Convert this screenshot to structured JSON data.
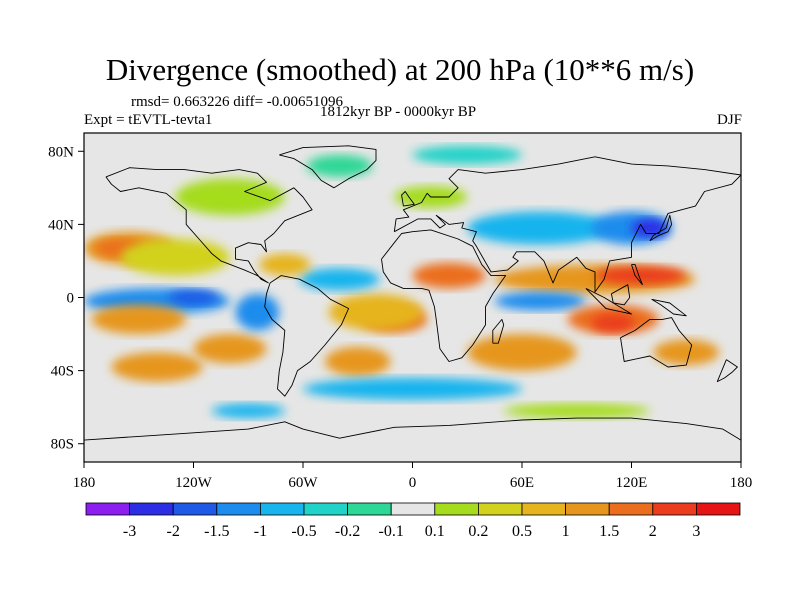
{
  "title": "Divergence (smoothed) at 200 hPa (10**6 m/s)",
  "stats": "rmsd= 0.663226 diff= -0.00651096",
  "experiment": "Expt = tEVTL-tevta1",
  "period": "1812kyr BP - 0000kyr BP",
  "season": "DJF",
  "map": {
    "projection": "cylindrical-equidistant",
    "lon_range": [
      -180,
      180
    ],
    "lat_range": [
      -90,
      90
    ],
    "lat_ticks": [
      {
        "value": 80,
        "label": "80N"
      },
      {
        "value": 40,
        "label": "40N"
      },
      {
        "value": 0,
        "label": "0"
      },
      {
        "value": -40,
        "label": "40S"
      },
      {
        "value": -80,
        "label": "80S"
      }
    ],
    "lon_ticks": [
      {
        "value": -180,
        "label": "180"
      },
      {
        "value": -120,
        "label": "120W"
      },
      {
        "value": -60,
        "label": "60W"
      },
      {
        "value": 0,
        "label": "0"
      },
      {
        "value": 60,
        "label": "60E"
      },
      {
        "value": 120,
        "label": "120E"
      },
      {
        "value": 180,
        "label": "180"
      }
    ]
  },
  "colorbar": {
    "colors": [
      "#8c1ef0",
      "#2d2de6",
      "#1f5ae6",
      "#1e8ced",
      "#17b4ee",
      "#20d2c8",
      "#2dd796",
      "#e6e6e6",
      "#a5dc1e",
      "#d2d21e",
      "#e6b41e",
      "#e6961e",
      "#eb6e1e",
      "#eb3c1e",
      "#e61414"
    ],
    "labels": [
      "-3",
      "-2",
      "-1.5",
      "-1",
      "-0.5",
      "-0.2",
      "-0.1",
      "0.1",
      "0.2",
      "0.5",
      "1",
      "1.5",
      "2",
      "3"
    ]
  },
  "regions": [
    {
      "name": "pacific-north-positive",
      "lon": -155,
      "lat": 27,
      "rlon": 25,
      "rlat": 9,
      "color": "#e6961e"
    },
    {
      "name": "pacific-north-core",
      "lon": -160,
      "lat": 27,
      "rlon": 14,
      "rlat": 5,
      "color": "#eb6e1e"
    },
    {
      "name": "pacific-north-yellow",
      "lon": -130,
      "lat": 22,
      "rlon": 30,
      "rlat": 10,
      "color": "#d2d21e"
    },
    {
      "name": "pacific-equator-negative",
      "lon": -140,
      "lat": -2,
      "rlon": 40,
      "rlat": 7,
      "color": "#1e8ced"
    },
    {
      "name": "pacific-equator-blue",
      "lon": -120,
      "lat": 0,
      "rlon": 14,
      "rlat": 4,
      "color": "#1f5ae6"
    },
    {
      "name": "pacific-south-band",
      "lon": -150,
      "lat": -12,
      "rlon": 26,
      "rlat": 8,
      "color": "#e6961e"
    },
    {
      "name": "pacific-south-orange",
      "lon": -100,
      "lat": -28,
      "rlon": 20,
      "rlat": 8,
      "color": "#e6961e"
    },
    {
      "name": "south-america-trough",
      "lon": -85,
      "lat": -8,
      "rlon": 12,
      "rlat": 10,
      "color": "#1e8ced"
    },
    {
      "name": "atlantic-equator-orange",
      "lon": -10,
      "lat": -12,
      "rlon": 18,
      "rlat": 7,
      "color": "#eb6e1e"
    },
    {
      "name": "atlantic-equator-yellow",
      "lon": -20,
      "lat": -8,
      "rlon": 26,
      "rlat": 10,
      "color": "#e6b41e"
    },
    {
      "name": "atlantic-north-blue",
      "lon": -40,
      "lat": 10,
      "rlon": 22,
      "rlat": 6,
      "color": "#17b4ee"
    },
    {
      "name": "caribbean-yellow",
      "lon": -70,
      "lat": 18,
      "rlon": 14,
      "rlat": 6,
      "color": "#e6b41e"
    },
    {
      "name": "north-america-green",
      "lon": -100,
      "lat": 55,
      "rlon": 30,
      "rlat": 10,
      "color": "#a5dc1e"
    },
    {
      "name": "greenland-green",
      "lon": -40,
      "lat": 72,
      "rlon": 18,
      "rlat": 6,
      "color": "#2dd796"
    },
    {
      "name": "arctic-cyan",
      "lon": 30,
      "lat": 78,
      "rlon": 30,
      "rlat": 5,
      "color": "#20d2c8"
    },
    {
      "name": "europe-green",
      "lon": 10,
      "lat": 55,
      "rlon": 20,
      "rlat": 6,
      "color": "#a5dc1e"
    },
    {
      "name": "asia-north-blue",
      "lon": 70,
      "lat": 38,
      "rlon": 40,
      "rlat": 9,
      "color": "#17b4ee"
    },
    {
      "name": "asia-north-deep",
      "lon": 120,
      "lat": 38,
      "rlon": 22,
      "rlat": 9,
      "color": "#1e8ced"
    },
    {
      "name": "japan-core",
      "lon": 130,
      "lat": 38,
      "rlon": 10,
      "rlat": 5,
      "color": "#2d2de6"
    },
    {
      "name": "africa-orange",
      "lon": 20,
      "lat": 12,
      "rlon": 20,
      "rlat": 7,
      "color": "#eb6e1e"
    },
    {
      "name": "asia-equator-band",
      "lon": 100,
      "lat": 10,
      "rlon": 55,
      "rlat": 8,
      "color": "#e6961e"
    },
    {
      "name": "asia-equator-core",
      "lon": 125,
      "lat": 12,
      "rlon": 25,
      "rlat": 5,
      "color": "#eb3c1e"
    },
    {
      "name": "indian-ocean-blue",
      "lon": 70,
      "lat": -2,
      "rlon": 25,
      "rlat": 5,
      "color": "#1e8ced"
    },
    {
      "name": "maritime-positive",
      "lon": 110,
      "lat": -12,
      "rlon": 25,
      "rlat": 8,
      "color": "#eb6e1e"
    },
    {
      "name": "maritime-core",
      "lon": 110,
      "lat": -14,
      "rlon": 12,
      "rlat": 5,
      "color": "#eb3c1e"
    },
    {
      "name": "indian-south-orange",
      "lon": 60,
      "lat": -30,
      "rlon": 30,
      "rlat": 10,
      "color": "#e6961e"
    },
    {
      "name": "south-atlantic-orange",
      "lon": -30,
      "lat": -35,
      "rlon": 18,
      "rlat": 8,
      "color": "#e6961e"
    },
    {
      "name": "south-pacific-orange",
      "lon": -140,
      "lat": -38,
      "rlon": 25,
      "rlat": 8,
      "color": "#e6961e"
    },
    {
      "name": "southern-ocean-cyan",
      "lon": 0,
      "lat": -50,
      "rlon": 60,
      "rlat": 6,
      "color": "#17b4ee"
    },
    {
      "name": "australia-orange",
      "lon": 150,
      "lat": -30,
      "rlon": 18,
      "rlat": 7,
      "color": "#e6961e"
    },
    {
      "name": "antarctic-green",
      "lon": 90,
      "lat": -62,
      "rlon": 40,
      "rlat": 4,
      "color": "#a5dc1e"
    },
    {
      "name": "antarctic-blue",
      "lon": -90,
      "lat": -62,
      "rlon": 20,
      "rlat": 4,
      "color": "#17b4ee"
    }
  ],
  "coastlines": [
    {
      "name": "north-america",
      "points": [
        [
          -168,
          66
        ],
        [
          -155,
          71
        ],
        [
          -140,
          70
        ],
        [
          -125,
          70
        ],
        [
          -110,
          68
        ],
        [
          -95,
          70
        ],
        [
          -85,
          68
        ],
        [
          -80,
          63
        ],
        [
          -92,
          58
        ],
        [
          -78,
          53
        ],
        [
          -65,
          60
        ],
        [
          -60,
          55
        ],
        [
          -55,
          48
        ],
        [
          -65,
          44
        ],
        [
          -70,
          42
        ],
        [
          -76,
          35
        ],
        [
          -81,
          31
        ],
        [
          -80,
          25
        ],
        [
          -83,
          29
        ],
        [
          -90,
          30
        ],
        [
          -97,
          27
        ],
        [
          -97,
          21
        ],
        [
          -90,
          20
        ],
        [
          -87,
          15
        ],
        [
          -83,
          10
        ],
        [
          -79,
          8
        ],
        [
          -85,
          12
        ],
        [
          -92,
          15
        ],
        [
          -105,
          20
        ],
        [
          -110,
          24
        ],
        [
          -117,
          32
        ],
        [
          -124,
          40
        ],
        [
          -124,
          48
        ],
        [
          -135,
          57
        ],
        [
          -150,
          60
        ],
        [
          -160,
          58
        ],
        [
          -165,
          62
        ],
        [
          -168,
          66
        ]
      ]
    },
    {
      "name": "greenland",
      "points": [
        [
          -73,
          78
        ],
        [
          -60,
          82
        ],
        [
          -35,
          83
        ],
        [
          -20,
          81
        ],
        [
          -20,
          75
        ],
        [
          -25,
          70
        ],
        [
          -35,
          65
        ],
        [
          -43,
          60
        ],
        [
          -50,
          64
        ],
        [
          -55,
          70
        ],
        [
          -65,
          76
        ],
        [
          -73,
          78
        ]
      ]
    },
    {
      "name": "south-america",
      "points": [
        [
          -78,
          8
        ],
        [
          -72,
          12
        ],
        [
          -62,
          10
        ],
        [
          -52,
          5
        ],
        [
          -45,
          -1
        ],
        [
          -35,
          -6
        ],
        [
          -39,
          -15
        ],
        [
          -48,
          -26
        ],
        [
          -56,
          -35
        ],
        [
          -63,
          -40
        ],
        [
          -66,
          -48
        ],
        [
          -70,
          -54
        ],
        [
          -74,
          -50
        ],
        [
          -73,
          -40
        ],
        [
          -71,
          -30
        ],
        [
          -70,
          -18
        ],
        [
          -77,
          -12
        ],
        [
          -81,
          -5
        ],
        [
          -80,
          2
        ],
        [
          -78,
          8
        ]
      ]
    },
    {
      "name": "africa",
      "points": [
        [
          -17,
          21
        ],
        [
          -16,
          14
        ],
        [
          -12,
          8
        ],
        [
          -5,
          5
        ],
        [
          5,
          5
        ],
        [
          9,
          4
        ],
        [
          12,
          -5
        ],
        [
          13,
          -12
        ],
        [
          15,
          -28
        ],
        [
          20,
          -35
        ],
        [
          27,
          -33
        ],
        [
          33,
          -26
        ],
        [
          40,
          -15
        ],
        [
          40,
          -5
        ],
        [
          44,
          2
        ],
        [
          51,
          12
        ],
        [
          43,
          12
        ],
        [
          38,
          18
        ],
        [
          33,
          28
        ],
        [
          25,
          32
        ],
        [
          10,
          37
        ],
        [
          0,
          36
        ],
        [
          -6,
          35
        ],
        [
          -10,
          30
        ],
        [
          -17,
          21
        ]
      ]
    },
    {
      "name": "eurasia",
      "points": [
        [
          -10,
          36
        ],
        [
          -9,
          43
        ],
        [
          -2,
          44
        ],
        [
          -5,
          48
        ],
        [
          5,
          52
        ],
        [
          8,
          57
        ],
        [
          10,
          55
        ],
        [
          20,
          55
        ],
        [
          25,
          60
        ],
        [
          20,
          65
        ],
        [
          25,
          70
        ],
        [
          40,
          68
        ],
        [
          60,
          70
        ],
        [
          80,
          73
        ],
        [
          100,
          77
        ],
        [
          120,
          73
        ],
        [
          140,
          72
        ],
        [
          160,
          70
        ],
        [
          180,
          67
        ],
        [
          175,
          62
        ],
        [
          160,
          58
        ],
        [
          155,
          50
        ],
        [
          140,
          46
        ],
        [
          135,
          35
        ],
        [
          128,
          35
        ],
        [
          125,
          40
        ],
        [
          120,
          30
        ],
        [
          120,
          22
        ],
        [
          108,
          20
        ],
        [
          105,
          10
        ],
        [
          100,
          3
        ],
        [
          100,
          14
        ],
        [
          95,
          16
        ],
        [
          90,
          22
        ],
        [
          80,
          15
        ],
        [
          77,
          8
        ],
        [
          72,
          20
        ],
        [
          67,
          25
        ],
        [
          57,
          25
        ],
        [
          55,
          22
        ],
        [
          58,
          20
        ],
        [
          52,
          15
        ],
        [
          43,
          14
        ],
        [
          35,
          28
        ],
        [
          33,
          31
        ],
        [
          35,
          36
        ],
        [
          27,
          38
        ],
        [
          28,
          41
        ],
        [
          20,
          40
        ],
        [
          13,
          45
        ],
        [
          18,
          40
        ],
        [
          15,
          38
        ],
        [
          10,
          43
        ],
        [
          3,
          43
        ],
        [
          -10,
          36
        ]
      ]
    },
    {
      "name": "australia",
      "points": [
        [
          114,
          -22
        ],
        [
          122,
          -18
        ],
        [
          130,
          -12
        ],
        [
          137,
          -12
        ],
        [
          142,
          -11
        ],
        [
          146,
          -18
        ],
        [
          153,
          -26
        ],
        [
          150,
          -37
        ],
        [
          140,
          -38
        ],
        [
          130,
          -32
        ],
        [
          116,
          -35
        ],
        [
          114,
          -22
        ]
      ]
    },
    {
      "name": "antarctica",
      "points": [
        [
          -180,
          -78
        ],
        [
          -150,
          -76
        ],
        [
          -120,
          -74
        ],
        [
          -90,
          -72
        ],
        [
          -70,
          -68
        ],
        [
          -60,
          -72
        ],
        [
          -40,
          -77
        ],
        [
          -10,
          -71
        ],
        [
          20,
          -70
        ],
        [
          60,
          -67
        ],
        [
          90,
          -66
        ],
        [
          120,
          -66
        ],
        [
          150,
          -69
        ],
        [
          170,
          -72
        ],
        [
          180,
          -78
        ]
      ]
    },
    {
      "name": "uk",
      "points": [
        [
          -5,
          50
        ],
        [
          1,
          51
        ],
        [
          -2,
          55
        ],
        [
          -4,
          58
        ],
        [
          -6,
          56
        ],
        [
          -5,
          50
        ]
      ]
    },
    {
      "name": "madagascar",
      "points": [
        [
          44,
          -25
        ],
        [
          47,
          -25
        ],
        [
          50,
          -15
        ],
        [
          49,
          -12
        ],
        [
          44,
          -18
        ],
        [
          44,
          -25
        ]
      ]
    },
    {
      "name": "japan",
      "points": [
        [
          130,
          31
        ],
        [
          135,
          34
        ],
        [
          140,
          36
        ],
        [
          142,
          40
        ],
        [
          141,
          45
        ],
        [
          139,
          38
        ],
        [
          132,
          34
        ],
        [
          130,
          31
        ]
      ]
    },
    {
      "name": "indonesia",
      "points": [
        [
          95,
          5
        ],
        [
          106,
          -6
        ],
        [
          115,
          -8
        ],
        [
          120,
          -9
        ],
        [
          110,
          -3
        ],
        [
          105,
          0
        ],
        [
          95,
          5
        ]
      ]
    },
    {
      "name": "borneo",
      "points": [
        [
          109,
          2
        ],
        [
          118,
          7
        ],
        [
          119,
          0
        ],
        [
          116,
          -4
        ],
        [
          110,
          -3
        ],
        [
          109,
          2
        ]
      ]
    },
    {
      "name": "new-guinea",
      "points": [
        [
          131,
          -1
        ],
        [
          141,
          -3
        ],
        [
          150,
          -10
        ],
        [
          143,
          -9
        ],
        [
          136,
          -4
        ],
        [
          131,
          -1
        ]
      ]
    },
    {
      "name": "new-zealand",
      "points": [
        [
          172,
          -34
        ],
        [
          178,
          -38
        ],
        [
          175,
          -41
        ],
        [
          171,
          -44
        ],
        [
          167,
          -46
        ],
        [
          172,
          -34
        ]
      ]
    },
    {
      "name": "philippines",
      "points": [
        [
          120,
          18
        ],
        [
          122,
          12
        ],
        [
          126,
          7
        ],
        [
          124,
          12
        ],
        [
          122,
          18
        ],
        [
          120,
          18
        ]
      ]
    }
  ]
}
